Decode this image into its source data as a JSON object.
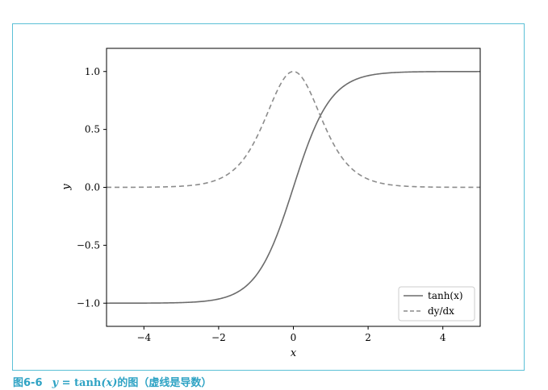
{
  "chart_data": {
    "type": "line",
    "xlabel": "x",
    "ylabel": "y",
    "xlim": [
      -5,
      5
    ],
    "ylim": [
      -1.2,
      1.2
    ],
    "xticks": [
      -4,
      -2,
      0,
      2,
      4
    ],
    "xtick_labels": [
      "−4",
      "−2",
      "0",
      "2",
      "4"
    ],
    "yticks": [
      1.0,
      0.5,
      0.0,
      -0.5,
      -1.0
    ],
    "ytick_labels": [
      "1.0",
      "0.5",
      "0.0",
      "−0.5",
      "−1.0"
    ],
    "grid": false,
    "legend_position": "bottom-right",
    "series": [
      {
        "name": "tanh(x)",
        "style": "solid",
        "color": "#6b6b6b",
        "x": [
          -5,
          -4.5,
          -4,
          -3.5,
          -3,
          -2.5,
          -2,
          -1.5,
          -1,
          -0.5,
          0,
          0.5,
          1,
          1.5,
          2,
          2.5,
          3,
          3.5,
          4,
          4.5,
          5
        ],
        "y": [
          -0.9999,
          -0.9998,
          -0.9993,
          -0.9982,
          -0.9951,
          -0.9866,
          -0.964,
          -0.9051,
          -0.7616,
          -0.4621,
          0,
          0.4621,
          0.7616,
          0.9051,
          0.964,
          0.9866,
          0.9951,
          0.9982,
          0.9993,
          0.9998,
          0.9999
        ]
      },
      {
        "name": "dy/dx",
        "style": "dashed",
        "color": "#8c8c8c",
        "x": [
          -5,
          -4.5,
          -4,
          -3.5,
          -3,
          -2.5,
          -2,
          -1.5,
          -1,
          -0.5,
          0,
          0.5,
          1,
          1.5,
          2,
          2.5,
          3,
          3.5,
          4,
          4.5,
          5
        ],
        "y": [
          0.0002,
          0.0005,
          0.0013,
          0.0036,
          0.0099,
          0.0266,
          0.0707,
          0.1807,
          0.42,
          0.7864,
          1.0,
          0.7864,
          0.42,
          0.1807,
          0.0707,
          0.0266,
          0.0099,
          0.0036,
          0.0013,
          0.0005,
          0.0002
        ]
      }
    ]
  },
  "caption": {
    "number": "图6-6",
    "formula_left": "y",
    "formula_eq": " = ",
    "formula_func": "tanh",
    "formula_arg": "(x)",
    "text": "的图（虚线是导数）"
  },
  "colors": {
    "frame_border": "#5bc0d6",
    "caption": "#2fa3c4",
    "axes": "#000000"
  }
}
